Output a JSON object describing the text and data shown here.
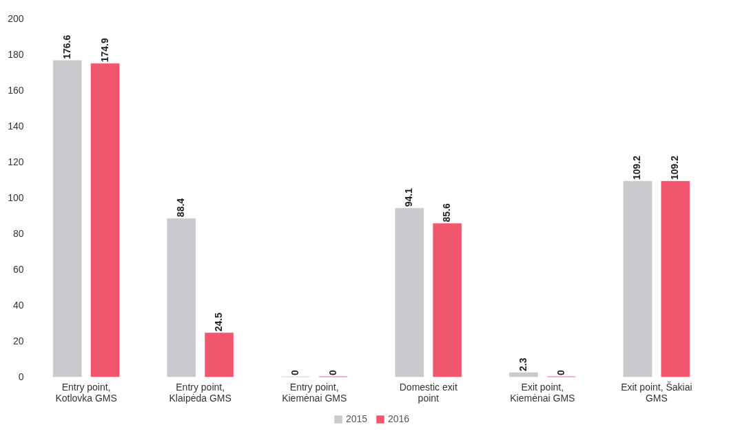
{
  "chart_data": {
    "type": "bar",
    "categories": [
      "Entry point,\nKotlovka GMS",
      "Entry point,\nKlaipėda GMS",
      "Entry point,\nKiemėnai GMS",
      "Domestic exit\npoint",
      "Exit point,\nKiemėnai GMS",
      "Exit point, Šakiai\nGMS"
    ],
    "series": [
      {
        "name": "2015",
        "color": "#c9c9ce",
        "values": [
          176.6,
          88.4,
          0,
          94.1,
          2.3,
          109.2
        ]
      },
      {
        "name": "2016",
        "color": "#f2566e",
        "values": [
          174.9,
          24.5,
          0,
          85.6,
          0,
          109.2
        ]
      }
    ],
    "ylim": [
      0,
      200
    ],
    "yticks": [
      0,
      20,
      40,
      60,
      80,
      100,
      120,
      140,
      160,
      180,
      200
    ],
    "grid": false,
    "legend": "bottom",
    "data_labels": true
  }
}
